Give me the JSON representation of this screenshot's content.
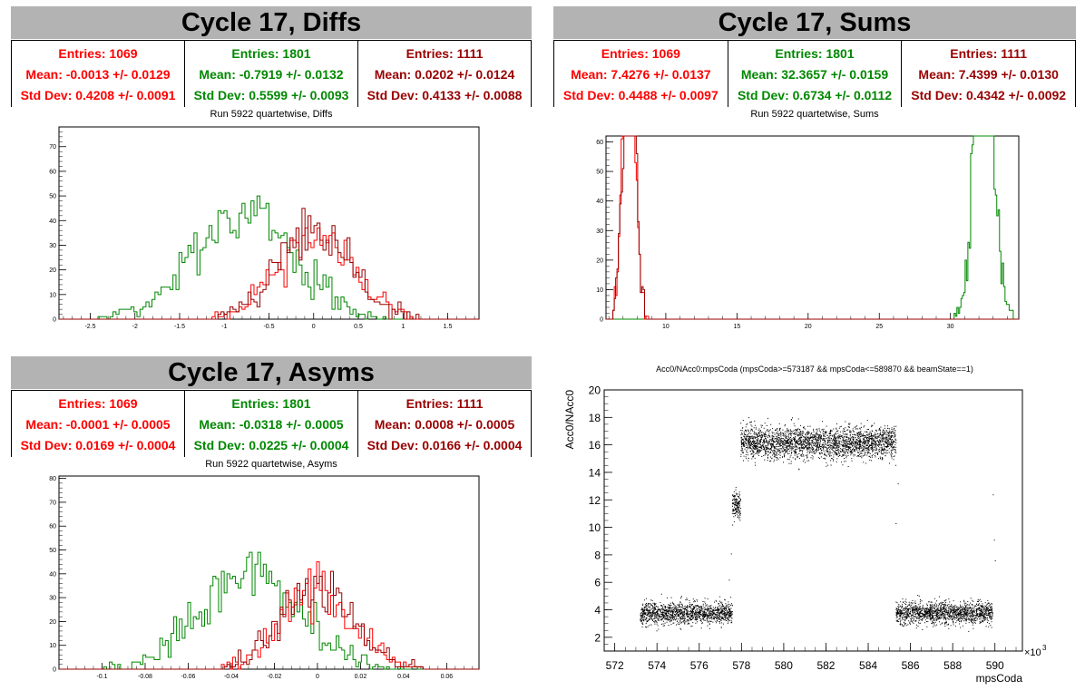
{
  "colors": {
    "red": "#ff0000",
    "green": "#008800",
    "darkred": "#990000",
    "title_bg": "#b3b3b3"
  },
  "panels": [
    {
      "title": "Cycle 17, Diffs",
      "subtitle": "Run 5922 quartetwise, Diffs",
      "stats": [
        {
          "entries": "Entries: 1069",
          "mean": "Mean: -0.0013 +/- 0.0129",
          "std": "Std Dev: 0.4208 +/- 0.0091"
        },
        {
          "entries": "Entries: 1801",
          "mean": "Mean: -0.7919 +/- 0.0132",
          "std": "Std Dev: 0.5599 +/- 0.0093"
        },
        {
          "entries": "Entries: 1111",
          "mean": "Mean: 0.0202 +/- 0.0124",
          "std": "Std Dev: 0.4133 +/- 0.0088"
        }
      ]
    },
    {
      "title": "Cycle 17, Sums",
      "subtitle": "Run 5922 quartetwise, Sums",
      "stats": [
        {
          "entries": "Entries: 1069",
          "mean": "Mean: 7.4276 +/- 0.0137",
          "std": "Std Dev: 0.4488 +/- 0.0097"
        },
        {
          "entries": "Entries: 1801",
          "mean": "Mean: 32.3657 +/- 0.0159",
          "std": "Std Dev: 0.6734 +/- 0.0112"
        },
        {
          "entries": "Entries: 1111",
          "mean": "Mean: 7.4399 +/- 0.0130",
          "std": "Std Dev: 0.4342 +/- 0.0092"
        }
      ]
    },
    {
      "title": "Cycle 17, Asyms",
      "subtitle": "Run 5922 quartetwise, Asyms",
      "stats": [
        {
          "entries": "Entries: 1069",
          "mean": "Mean: -0.0001 +/- 0.0005",
          "std": "Std Dev: 0.0169 +/- 0.0004"
        },
        {
          "entries": "Entries: 1801",
          "mean": "Mean: -0.0318 +/- 0.0005",
          "std": "Std Dev: 0.0225 +/- 0.0004"
        },
        {
          "entries": "Entries: 1111",
          "mean": "Mean: 0.0008 +/- 0.0005",
          "std": "Std Dev: 0.0166 +/- 0.0004"
        }
      ]
    },
    {
      "title": "Acc0/NAcc0:mpsCoda (mpsCoda>=573187 && mpsCoda<=589870 && beamState==1)"
    }
  ],
  "chart_data": [
    {
      "type": "histogram",
      "xlim": [
        -2.85,
        1.85
      ],
      "ylim": [
        0,
        78
      ],
      "xticks": [
        -2.5,
        -2,
        -1.5,
        -1,
        -0.5,
        0,
        0.5,
        1,
        1.5
      ],
      "xtick_labels": [
        "-2.5",
        "-2",
        "-1.5",
        "-1",
        "-0.5",
        "0",
        "0.5",
        "1",
        "1.5"
      ],
      "yticks": [
        0,
        10,
        20,
        30,
        40,
        50,
        60,
        70
      ],
      "series": [
        {
          "color": "#008800",
          "mean": -0.7919,
          "std": 0.5599,
          "entries": 1801,
          "xmin": -2.45,
          "xmax": 1.5
        },
        {
          "color": "#ff0000",
          "mean": -0.0013,
          "std": 0.4208,
          "entries": 1069,
          "xmin": -1.15,
          "xmax": 1.15
        },
        {
          "color": "#990000",
          "mean": 0.0202,
          "std": 0.4133,
          "entries": 1111,
          "xmin": -1.1,
          "xmax": 1.2
        }
      ]
    },
    {
      "type": "histogram",
      "xlim": [
        5.8,
        34.8
      ],
      "ylim": [
        0,
        62
      ],
      "xticks": [
        10,
        15,
        20,
        25,
        30
      ],
      "xtick_labels": [
        "10",
        "15",
        "20",
        "25",
        "30"
      ],
      "yticks": [
        0,
        10,
        20,
        30,
        40,
        50,
        60
      ],
      "series": [
        {
          "color": "#008800",
          "mean": 32.3657,
          "std": 0.6734,
          "entries": 1801,
          "xmin": 30.2,
          "xmax": 34.6
        },
        {
          "color": "#ff0000",
          "mean": 7.4276,
          "std": 0.4488,
          "entries": 1069,
          "xmin": 6.3,
          "xmax": 8.8
        },
        {
          "color": "#990000",
          "mean": 7.4399,
          "std": 0.4342,
          "entries": 1111,
          "xmin": 6.3,
          "xmax": 8.8
        }
      ]
    },
    {
      "type": "histogram",
      "xlim": [
        -0.12,
        0.075
      ],
      "ylim": [
        0,
        81
      ],
      "xticks": [
        -0.1,
        -0.08,
        -0.06,
        -0.04,
        -0.02,
        0,
        0.02,
        0.04,
        0.06
      ],
      "xtick_labels": [
        "-0.1",
        "-0.08",
        "-0.06",
        "-0.04",
        "-0.02",
        "0",
        "0.02",
        "0.04",
        "0.06"
      ],
      "yticks": [
        0,
        10,
        20,
        30,
        40,
        50,
        60,
        70,
        80
      ],
      "series": [
        {
          "color": "#008800",
          "mean": -0.0318,
          "std": 0.0225,
          "entries": 1801,
          "xmin": -0.108,
          "xmax": 0.062
        },
        {
          "color": "#ff0000",
          "mean": -0.0001,
          "std": 0.0169,
          "entries": 1069,
          "xmin": -0.046,
          "xmax": 0.048
        },
        {
          "color": "#990000",
          "mean": 0.0008,
          "std": 0.0166,
          "entries": 1111,
          "xmin": -0.044,
          "xmax": 0.05
        }
      ]
    },
    {
      "type": "scatter",
      "title": "Acc0/NAcc0:mpsCoda (mpsCoda>=573187 && mpsCoda<=589870 && beamState==1)",
      "xlabel": "mpsCoda",
      "ylabel": "Acc0/NAcc0",
      "x_multiplier_label": "×10",
      "x_multiplier_exp": "3",
      "xlim": [
        571.5,
        591.3
      ],
      "ylim": [
        1,
        20
      ],
      "xticks": [
        572,
        574,
        576,
        578,
        580,
        582,
        584,
        586,
        588,
        590
      ],
      "yticks": [
        2,
        4,
        6,
        8,
        10,
        12,
        14,
        16,
        18,
        20
      ],
      "clusters": [
        {
          "x": [
            573.19,
            577.55
          ],
          "y_center": 3.8,
          "y_spread": 0.45,
          "points": 1400
        },
        {
          "x": [
            577.55,
            577.95
          ],
          "y_center": 11.6,
          "y_spread": 0.6,
          "points": 150
        },
        {
          "x": [
            577.95,
            585.3
          ],
          "y_center": 16.2,
          "y_spread": 0.65,
          "points": 2600
        },
        {
          "x": [
            585.3,
            589.87
          ],
          "y_center": 3.8,
          "y_spread": 0.45,
          "points": 1500
        }
      ]
    }
  ]
}
